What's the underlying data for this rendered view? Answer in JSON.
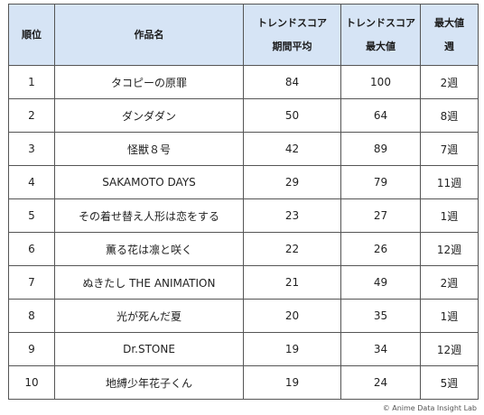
{
  "headers": {
    "rank": "順位",
    "title": "作品名",
    "avg_line1": "トレンドスコア",
    "avg_line2": "期間平均",
    "max_line1": "トレンドスコア",
    "max_line2": "最大値",
    "week_line1": "最大値",
    "week_line2": "週"
  },
  "rows": [
    {
      "rank": "1",
      "title": "タコピーの原罪",
      "avg": "84",
      "max": "100",
      "week": "2週"
    },
    {
      "rank": "2",
      "title": "ダンダダン",
      "avg": "50",
      "max": "64",
      "week": "8週"
    },
    {
      "rank": "3",
      "title": "怪獣８号",
      "avg": "42",
      "max": "89",
      "week": "7週"
    },
    {
      "rank": "4",
      "title": "SAKAMOTO DAYS",
      "avg": "29",
      "max": "79",
      "week": "11週"
    },
    {
      "rank": "5",
      "title": "その着せ替え人形は恋をする",
      "avg": "23",
      "max": "27",
      "week": "1週"
    },
    {
      "rank": "6",
      "title": "薫る花は凛と咲く",
      "avg": "22",
      "max": "26",
      "week": "12週"
    },
    {
      "rank": "7",
      "title": "ぬきたし THE ANIMATION",
      "avg": "21",
      "max": "49",
      "week": "2週"
    },
    {
      "rank": "8",
      "title": "光が死んだ夏",
      "avg": "20",
      "max": "35",
      "week": "1週"
    },
    {
      "rank": "9",
      "title": "Dr.STONE",
      "avg": "19",
      "max": "34",
      "week": "12週"
    },
    {
      "rank": "10",
      "title": "地縛少年花子くん",
      "avg": "19",
      "max": "24",
      "week": "5週"
    }
  ],
  "copyright": "© Anime Data Insight Lab"
}
